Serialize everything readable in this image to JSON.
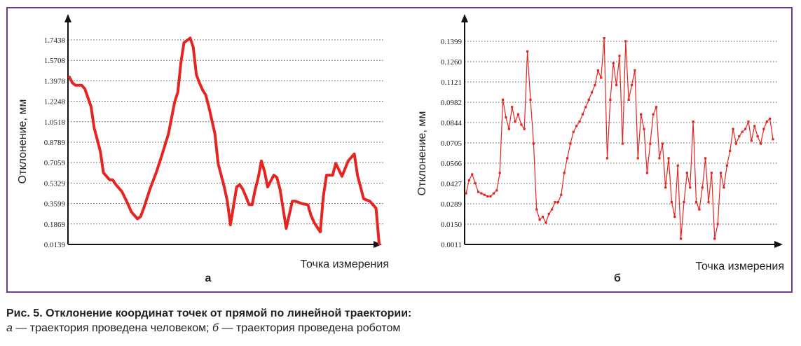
{
  "chart_data": [
    {
      "type": "line",
      "panel_letter": "а",
      "ylabel": "Отклонение, мм",
      "xlabel": "Точка измерения",
      "yticks": [
        "1.7438",
        "1.5708",
        "1.3978",
        "1.2248",
        "1.0518",
        "0.8789",
        "0.7059",
        "0.5329",
        "0.3599",
        "0.1869",
        "0.0139"
      ],
      "ylim": [
        0.0139,
        1.7438
      ],
      "grid": "horizontal-dotted",
      "color": "#e52521",
      "series": [
        {
          "x": [
            0,
            1,
            2,
            4,
            5,
            7,
            8,
            10,
            11,
            13,
            14,
            15,
            17,
            19,
            20,
            22,
            23,
            24,
            26,
            28,
            30,
            32,
            34,
            35,
            36,
            37,
            39,
            40,
            41,
            42,
            43,
            44,
            45,
            47,
            48,
            50,
            51,
            52,
            54,
            55,
            56,
            57,
            58,
            59,
            60,
            61,
            62,
            63,
            64,
            65,
            66,
            67,
            68,
            70,
            72,
            73,
            75,
            77,
            78,
            79,
            81,
            82,
            83,
            85,
            86,
            88,
            90,
            92,
            93,
            95,
            96,
            97,
            99,
            100
          ],
          "values": [
            1.43,
            1.38,
            1.36,
            1.36,
            1.33,
            1.18,
            1.0,
            0.8,
            0.62,
            0.56,
            0.56,
            0.52,
            0.46,
            0.35,
            0.29,
            0.23,
            0.25,
            0.32,
            0.48,
            0.62,
            0.78,
            0.95,
            1.22,
            1.3,
            1.55,
            1.72,
            1.76,
            1.68,
            1.45,
            1.38,
            1.32,
            1.28,
            1.18,
            0.95,
            0.7,
            0.5,
            0.38,
            0.18,
            0.5,
            0.52,
            0.48,
            0.42,
            0.35,
            0.35,
            0.48,
            0.58,
            0.72,
            0.63,
            0.5,
            0.55,
            0.6,
            0.58,
            0.48,
            0.15,
            0.38,
            0.38,
            0.36,
            0.35,
            0.26,
            0.2,
            0.12,
            0.42,
            0.6,
            0.6,
            0.7,
            0.59,
            0.72,
            0.78,
            0.6,
            0.4,
            0.39,
            0.38,
            0.32,
            0.02
          ]
        }
      ]
    },
    {
      "type": "line",
      "panel_letter": "б",
      "ylabel": "Отклонение, мм",
      "xlabel": "Точка измерения",
      "yticks": [
        "0.1399",
        "0.1260",
        "0.1121",
        "0.0982",
        "0.0844",
        "0.0705",
        "0.0566",
        "0.0427",
        "0.0289",
        "0.0150",
        "0.0011"
      ],
      "ylim": [
        0.0011,
        0.1399
      ],
      "grid": "horizontal-dotted",
      "color": "#e52521",
      "series": [
        {
          "x": [
            0,
            1,
            2,
            3,
            4,
            5,
            6,
            7,
            8,
            9,
            10,
            11,
            12,
            13,
            14,
            15,
            16,
            17,
            18,
            19,
            20,
            21,
            22,
            23,
            24,
            25,
            26,
            27,
            28,
            29,
            30,
            31,
            32,
            33,
            34,
            35,
            36,
            37,
            38,
            39,
            40,
            41,
            42,
            43,
            44,
            45,
            46,
            47,
            48,
            49,
            50,
            51,
            52,
            53,
            54,
            55,
            56,
            57,
            58,
            59,
            60,
            61,
            62,
            63,
            64,
            65,
            66,
            67,
            68,
            69,
            70,
            71,
            72,
            73,
            74,
            75,
            76,
            77,
            78,
            79,
            80,
            81,
            82,
            83,
            84,
            85,
            86,
            87,
            88,
            89,
            90,
            91,
            92,
            93,
            94,
            95,
            96,
            97,
            98,
            99,
            100
          ],
          "values": [
            0.036,
            0.045,
            0.049,
            0.043,
            0.037,
            0.036,
            0.035,
            0.034,
            0.034,
            0.036,
            0.038,
            0.05,
            0.1,
            0.088,
            0.08,
            0.095,
            0.085,
            0.09,
            0.083,
            0.08,
            0.133,
            0.1,
            0.07,
            0.025,
            0.018,
            0.02,
            0.016,
            0.022,
            0.025,
            0.03,
            0.03,
            0.035,
            0.05,
            0.06,
            0.07,
            0.078,
            0.082,
            0.085,
            0.09,
            0.095,
            0.1,
            0.105,
            0.11,
            0.12,
            0.115,
            0.142,
            0.06,
            0.1,
            0.125,
            0.11,
            0.13,
            0.07,
            0.14,
            0.1,
            0.11,
            0.12,
            0.06,
            0.09,
            0.08,
            0.05,
            0.07,
            0.09,
            0.095,
            0.06,
            0.07,
            0.04,
            0.06,
            0.03,
            0.02,
            0.055,
            0.005,
            0.03,
            0.05,
            0.04,
            0.085,
            0.03,
            0.025,
            0.04,
            0.06,
            0.03,
            0.05,
            0.005,
            0.015,
            0.05,
            0.04,
            0.055,
            0.065,
            0.08,
            0.07,
            0.075,
            0.078,
            0.08,
            0.085,
            0.072,
            0.082,
            0.075,
            0.07,
            0.08,
            0.085,
            0.087,
            0.073
          ]
        }
      ]
    }
  ],
  "caption": {
    "title": "Рис. 5. Отклонение координат точек от прямой по линейной траектории:",
    "sub_a_letter": "а",
    "sub_a_text": " — траектория проведена человеком; ",
    "sub_b_letter": "б",
    "sub_b_text": " — траектория проведена роботом"
  }
}
